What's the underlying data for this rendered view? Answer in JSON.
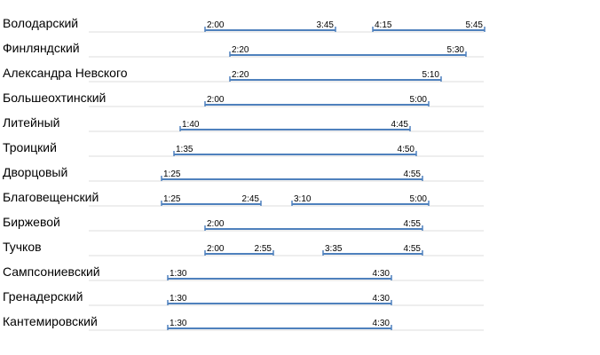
{
  "chart_data": {
    "type": "gantt",
    "title": "",
    "colors": {
      "bar": "#4f81bd",
      "guide": "#dddddd",
      "text": "#000000"
    },
    "rows": [
      {
        "label": "Володарский",
        "intervals": [
          {
            "start": "2:00",
            "end": "3:45"
          },
          {
            "start": "4:15",
            "end": "5:45"
          }
        ]
      },
      {
        "label": "Финляндский",
        "intervals": [
          {
            "start": "2:20",
            "end": "5:30"
          }
        ]
      },
      {
        "label": "Александра Невского",
        "intervals": [
          {
            "start": "2:20",
            "end": "5:10"
          }
        ]
      },
      {
        "label": "Большеохтинский",
        "intervals": [
          {
            "start": "2:00",
            "end": "5:00"
          }
        ]
      },
      {
        "label": "Литейный",
        "intervals": [
          {
            "start": "1:40",
            "end": "4:45"
          }
        ]
      },
      {
        "label": "Троицкий",
        "intervals": [
          {
            "start": "1:35",
            "end": "4:50"
          }
        ]
      },
      {
        "label": "Дворцовый",
        "intervals": [
          {
            "start": "1:25",
            "end": "4:55"
          }
        ]
      },
      {
        "label": "Благовещенский",
        "intervals": [
          {
            "start": "1:25",
            "end": "2:45"
          },
          {
            "start": "3:10",
            "end": "5:00"
          }
        ]
      },
      {
        "label": "Биржевой",
        "intervals": [
          {
            "start": "2:00",
            "end": "4:55"
          }
        ]
      },
      {
        "label": "Тучков",
        "intervals": [
          {
            "start": "2:00",
            "end": "2:55"
          },
          {
            "start": "3:35",
            "end": "4:55"
          }
        ]
      },
      {
        "label": "Сампсониевский",
        "intervals": [
          {
            "start": "1:30",
            "end": "4:30"
          }
        ]
      },
      {
        "label": "Гренадерский",
        "intervals": [
          {
            "start": "1:30",
            "end": "4:30"
          }
        ]
      },
      {
        "label": "Кантемировский",
        "intervals": [
          {
            "start": "1:30",
            "end": "4:30"
          }
        ]
      }
    ]
  }
}
